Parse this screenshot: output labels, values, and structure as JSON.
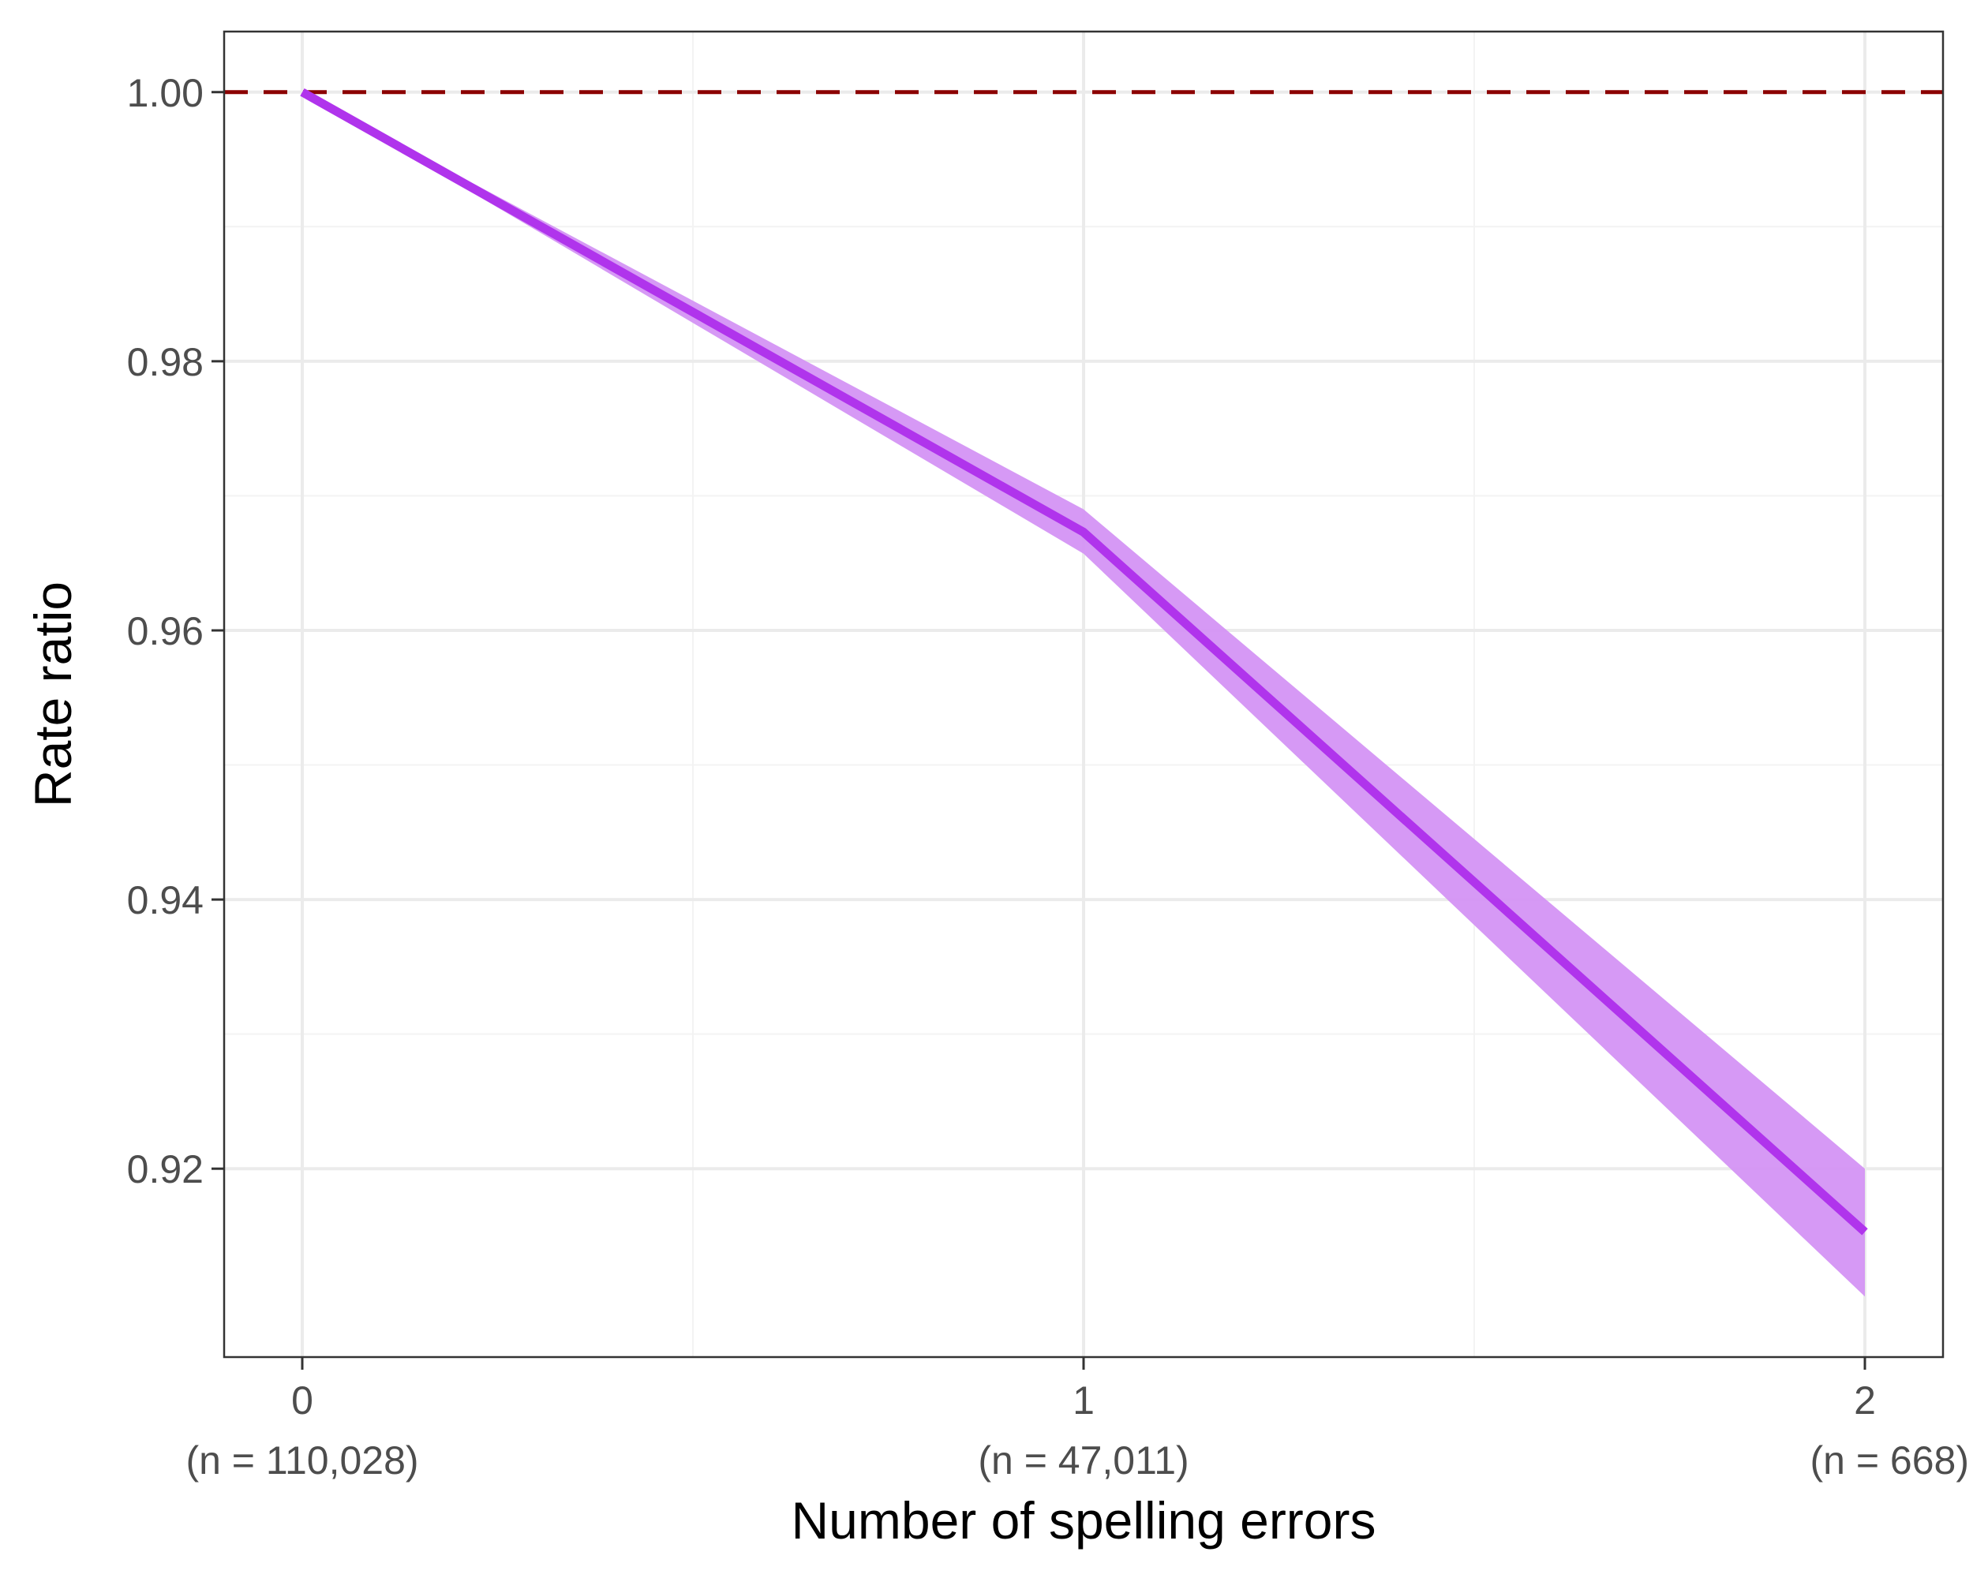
{
  "chart_data": {
    "type": "line",
    "title": "",
    "xlabel": "Number of spelling errors",
    "ylabel": "Rate ratio",
    "xlim": [
      -0.1,
      2.1
    ],
    "ylim": [
      0.906,
      1.0045
    ],
    "grid": true,
    "x": [
      0,
      1,
      2
    ],
    "x_tick_labels": [
      "0",
      "1",
      "2"
    ],
    "x_tick_sublabels": [
      "(n = 110,028)",
      "(n = 47,011)",
      "(n = 668)"
    ],
    "y_ticks": [
      0.92,
      0.94,
      0.96,
      0.98,
      1.0
    ],
    "y_tick_labels": [
      "0.92",
      "0.94",
      "0.96",
      "0.98",
      "1.00"
    ],
    "series": [
      {
        "values": [
          1.0,
          0.9673,
          0.9153
        ],
        "lower": [
          1.0,
          0.9657,
          0.9105
        ],
        "upper": [
          1.0,
          0.969,
          0.92
        ],
        "color": "#b034ec",
        "band_color": "#d494f4"
      }
    ],
    "reference_line": {
      "y": 1.0,
      "style": "dashed",
      "color": "#8b0000"
    }
  }
}
